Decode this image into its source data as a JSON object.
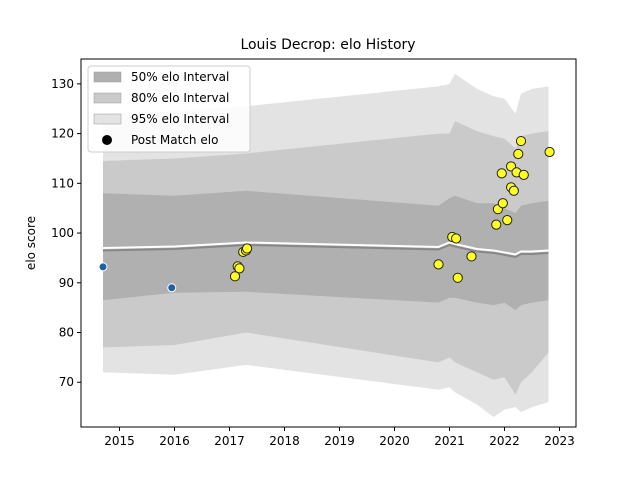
{
  "chart_data": {
    "type": "scatter",
    "title": "Louis Decrop: elo History",
    "xlabel": "",
    "ylabel": "elo score",
    "xlim": [
      2014.3,
      2023.3
    ],
    "ylim": [
      61,
      135
    ],
    "xticks": [
      2015,
      2016,
      2017,
      2018,
      2019,
      2020,
      2021,
      2022,
      2023
    ],
    "yticks": [
      70,
      80,
      90,
      100,
      110,
      120,
      130
    ],
    "grid": false,
    "legend_position": "upper-left",
    "legend": [
      {
        "label": "50% elo Interval",
        "color": "#b0b0b0"
      },
      {
        "label": "80% elo Interval",
        "color": "#cacaca"
      },
      {
        "label": "95% elo Interval",
        "color": "#e3e3e3"
      },
      {
        "label": "Post Match elo",
        "color": "#000000"
      }
    ],
    "colors": {
      "band95": "#e3e3e3",
      "band80": "#cacaca",
      "band50": "#b0b0b0",
      "mean_line": "#888888",
      "mean_outline": "#ffffff",
      "early_points": "#1f5fa8",
      "match_points": "#ffff22",
      "point_edge": "#222222"
    },
    "bands": {
      "x": [
        2014.7,
        2016.0,
        2017.3,
        2020.8,
        2021.0,
        2021.1,
        2021.5,
        2021.8,
        2022.0,
        2022.2,
        2022.3,
        2022.5,
        2022.8
      ],
      "p95_hi": [
        124,
        124.5,
        125.5,
        129.5,
        130,
        132,
        129,
        127.5,
        127,
        124,
        128,
        129,
        129.5
      ],
      "p80_hi": [
        114.5,
        115,
        116,
        120,
        120,
        122.5,
        120.5,
        119.5,
        119,
        117,
        119.5,
        120,
        120.5
      ],
      "p50_hi": [
        108,
        107.5,
        108.5,
        105.5,
        107,
        107.5,
        106,
        106,
        105,
        104,
        105.5,
        106,
        106.5
      ],
      "mean": [
        96.5,
        96.8,
        97.6,
        96.7,
        97.6,
        97.3,
        96.3,
        96.0,
        95.6,
        95.2,
        95.8,
        95.8,
        96.0
      ],
      "p50_lo": [
        86.5,
        88.0,
        88.2,
        86.0,
        87.0,
        87.0,
        86.0,
        85.5,
        86.0,
        84.5,
        85.5,
        86.0,
        86.5
      ],
      "p80_lo": [
        77.0,
        77.5,
        80.0,
        74.0,
        75.0,
        74.0,
        72.0,
        70.5,
        71.0,
        67.5,
        70.0,
        72.0,
        76.0
      ],
      "p95_lo": [
        72.0,
        71.5,
        73.5,
        68.5,
        69.0,
        68.0,
        65.5,
        63.0,
        64.5,
        65.0,
        64.0,
        65.0,
        66.0
      ]
    },
    "points": [
      {
        "x": 2014.7,
        "y": 93.2,
        "kind": "early"
      },
      {
        "x": 2015.95,
        "y": 89.0,
        "kind": "early"
      },
      {
        "x": 2017.1,
        "y": 91.3,
        "kind": "match"
      },
      {
        "x": 2017.15,
        "y": 93.3,
        "kind": "match"
      },
      {
        "x": 2017.18,
        "y": 92.9,
        "kind": "match"
      },
      {
        "x": 2017.25,
        "y": 96.2,
        "kind": "match"
      },
      {
        "x": 2017.3,
        "y": 96.5,
        "kind": "match"
      },
      {
        "x": 2017.32,
        "y": 96.9,
        "kind": "match"
      },
      {
        "x": 2020.8,
        "y": 93.7,
        "kind": "match"
      },
      {
        "x": 2021.05,
        "y": 99.2,
        "kind": "match"
      },
      {
        "x": 2021.12,
        "y": 98.9,
        "kind": "match"
      },
      {
        "x": 2021.15,
        "y": 91.0,
        "kind": "match"
      },
      {
        "x": 2021.4,
        "y": 95.3,
        "kind": "match"
      },
      {
        "x": 2021.85,
        "y": 101.7,
        "kind": "match"
      },
      {
        "x": 2021.88,
        "y": 104.8,
        "kind": "match"
      },
      {
        "x": 2021.95,
        "y": 112.0,
        "kind": "match"
      },
      {
        "x": 2021.97,
        "y": 106.0,
        "kind": "match"
      },
      {
        "x": 2022.05,
        "y": 102.6,
        "kind": "match"
      },
      {
        "x": 2022.12,
        "y": 113.4,
        "kind": "match"
      },
      {
        "x": 2022.12,
        "y": 109.2,
        "kind": "match"
      },
      {
        "x": 2022.17,
        "y": 108.5,
        "kind": "match"
      },
      {
        "x": 2022.22,
        "y": 112.2,
        "kind": "match"
      },
      {
        "x": 2022.25,
        "y": 115.9,
        "kind": "match"
      },
      {
        "x": 2022.3,
        "y": 118.5,
        "kind": "match"
      },
      {
        "x": 2022.35,
        "y": 111.7,
        "kind": "match"
      },
      {
        "x": 2022.82,
        "y": 116.3,
        "kind": "match"
      }
    ]
  }
}
